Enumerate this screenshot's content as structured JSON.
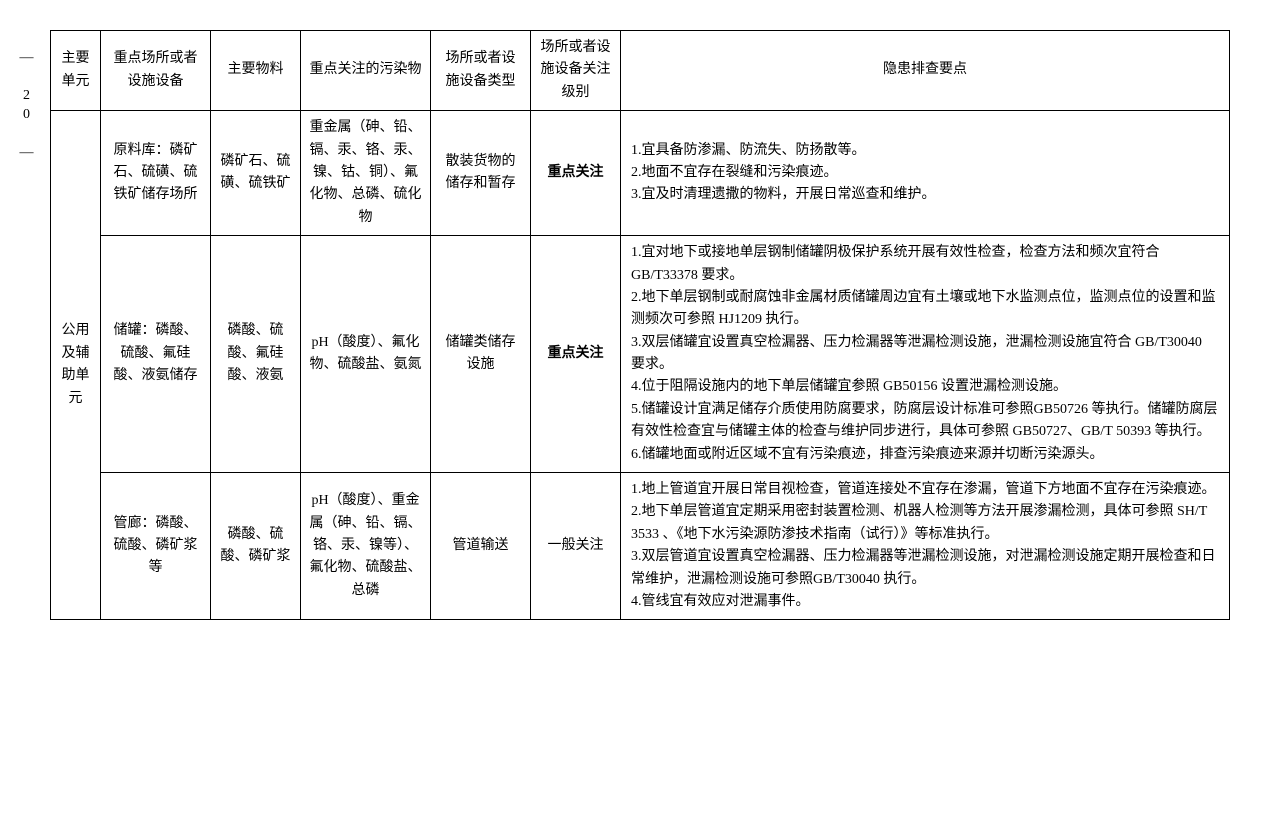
{
  "page_number": "— 20 —",
  "headers": {
    "col1": "主要单元",
    "col2": "重点场所或者设施设备",
    "col3": "主要物料",
    "col4": "重点关注的污染物",
    "col5": "场所或者设施设备类型",
    "col6": "场所或者设施设备关注级别",
    "col7": "隐患排查要点"
  },
  "unit": "公用及辅助单元",
  "rows": [
    {
      "place": "原料库：磷矿石、硫磺、硫铁矿储存场所",
      "material": "磷矿石、硫磺、硫铁矿",
      "pollutant": "重金属（砷、铅、镉、汞、铬、汞、镍、钴、铜）、氟化物、总磷、硫化物",
      "equip_type": "散装货物的储存和暂存",
      "level": "重点关注",
      "level_bold": true,
      "points": [
        "1.宜具备防渗漏、防流失、防扬散等。",
        "2.地面不宜存在裂缝和污染痕迹。",
        "3.宜及时清理遗撒的物料，开展日常巡查和维护。"
      ]
    },
    {
      "place": "储罐：磷酸、硫酸、氟硅酸、液氨储存",
      "material": "磷酸、硫酸、氟硅酸、液氨",
      "pollutant": "pH（酸度）、氟化物、硫酸盐、氨氮",
      "equip_type": "储罐类储存设施",
      "level": "重点关注",
      "level_bold": true,
      "points": [
        "1.宜对地下或接地单层钢制储罐阴极保护系统开展有效性检查，检查方法和频次宜符合 GB/T33378 要求。",
        "2.地下单层钢制或耐腐蚀非金属材质储罐周边宜有土壤或地下水监测点位，监测点位的设置和监测频次可参照 HJ1209 执行。",
        "3.双层储罐宜设置真空检漏器、压力检漏器等泄漏检测设施，泄漏检测设施宜符合 GB/T30040 要求。",
        "4.位于阻隔设施内的地下单层储罐宜参照 GB50156 设置泄漏检测设施。",
        "5.储罐设计宜满足储存介质使用防腐要求，防腐层设计标准可参照GB50726 等执行。储罐防腐层有效性检查宜与储罐主体的检查与维护同步进行，具体可参照 GB50727、GB/T 50393 等执行。",
        "6.储罐地面或附近区域不宜有污染痕迹，排查污染痕迹来源并切断污染源头。"
      ]
    },
    {
      "place": "管廊：磷酸、硫酸、磷矿浆等",
      "material": "磷酸、硫酸、磷矿浆",
      "pollutant": "pH（酸度）、重金属（砷、铅、镉、铬、汞、镍等）、氟化物、硫酸盐、总磷",
      "equip_type": "管道输送",
      "level": "一般关注",
      "level_bold": false,
      "points": [
        "1.地上管道宜开展日常目视检查，管道连接处不宜存在渗漏，管道下方地面不宜存在污染痕迹。",
        "2.地下单层管道宜定期采用密封装置检测、机器人检测等方法开展渗漏检测，具体可参照 SH/T 3533 、《地下水污染源防渗技术指南（试行）》等标准执行。",
        "3.双层管道宜设置真空检漏器、压力检漏器等泄漏检测设施，对泄漏检测设施定期开展检查和日常维护，泄漏检测设施可参照GB/T30040 执行。",
        "4.管线宜有效应对泄漏事件。"
      ]
    }
  ]
}
